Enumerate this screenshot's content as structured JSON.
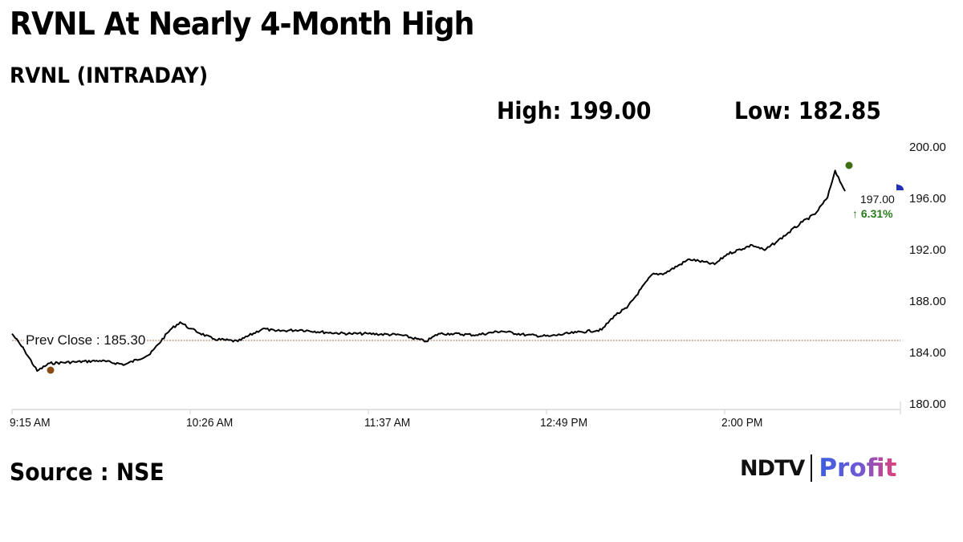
{
  "header": {
    "title": "RVNL At Nearly 4-Month High",
    "subtitle": "RVNL (INTRADAY)",
    "high_label": "High: 199.00",
    "low_label": "Low: 182.85"
  },
  "annotations": {
    "prev_close": "Prev Close : 185.30",
    "last_price": "197.00",
    "change": "↑ 6.31%"
  },
  "footer": {
    "source": "Source : NSE",
    "logo_left": "NDTV",
    "logo_right": "Profit"
  },
  "colors": {
    "line": "#000000",
    "prev_close_line": "#b08a78",
    "high_marker": "#3f6e12",
    "low_marker": "#8b4a12",
    "change_positive": "#2a7a1f",
    "current_marker": "#1f2fb8"
  },
  "chart_data": {
    "type": "line",
    "title": "RVNL (INTRADAY)",
    "xlabel": "",
    "ylabel": "",
    "ylim": [
      180,
      200
    ],
    "grid": false,
    "y_ticks": [
      "200.00",
      "196.00",
      "192.00",
      "188.00",
      "184.00",
      "180.00"
    ],
    "x_ticks": [
      "9:15 AM",
      "10:26 AM",
      "11:37 AM",
      "12:49 PM",
      "2:00 PM"
    ],
    "reference_line": {
      "label": "Prev Close",
      "value": 185.3
    },
    "high": 199.0,
    "low": 182.85,
    "last": 197.0,
    "change_pct": 6.31,
    "series": [
      {
        "name": "RVNL",
        "x": [
          "9:15 AM",
          "9:20 AM",
          "9:25 AM",
          "9:30 AM",
          "9:40 AM",
          "9:50 AM",
          "10:00 AM",
          "10:10 AM",
          "10:18 AM",
          "10:22 AM",
          "10:26 AM",
          "10:35 AM",
          "10:45 AM",
          "10:55 AM",
          "11:00 AM",
          "11:10 AM",
          "11:20 AM",
          "11:30 AM",
          "11:37 AM",
          "11:50 AM",
          "12:00 PM",
          "12:05 PM",
          "12:10 PM",
          "12:20 PM",
          "12:30 PM",
          "12:40 PM",
          "12:49 PM",
          "1:00 PM",
          "1:10 PM",
          "1:15 PM",
          "1:20 PM",
          "1:30 PM",
          "1:35 PM",
          "1:45 PM",
          "1:55 PM",
          "2:00 PM",
          "2:10 PM",
          "2:15 PM",
          "2:20 PM",
          "2:30 PM",
          "2:35 PM",
          "2:40 PM",
          "2:43 PM",
          "2:47 PM"
        ],
        "values": [
          185.9,
          184.6,
          183.0,
          183.6,
          183.7,
          183.8,
          183.5,
          184.3,
          186.2,
          186.8,
          186.3,
          185.5,
          185.3,
          186.3,
          186.1,
          186.2,
          186.0,
          185.9,
          185.9,
          185.8,
          185.3,
          185.9,
          185.9,
          185.8,
          186.1,
          185.8,
          185.7,
          186.0,
          186.2,
          187.3,
          187.9,
          190.5,
          190.6,
          191.7,
          191.3,
          192.1,
          192.8,
          192.4,
          193.1,
          194.6,
          195.2,
          196.5,
          198.6,
          197.0
        ]
      }
    ]
  }
}
